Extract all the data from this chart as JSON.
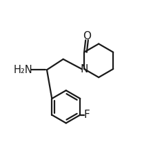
{
  "bg_color": "#ffffff",
  "line_color": "#1a1a1a",
  "line_width": 1.6,
  "figsize": [
    2.06,
    2.19
  ],
  "dpi": 100,
  "xlim": [
    0,
    1
  ],
  "ylim": [
    0,
    1
  ]
}
